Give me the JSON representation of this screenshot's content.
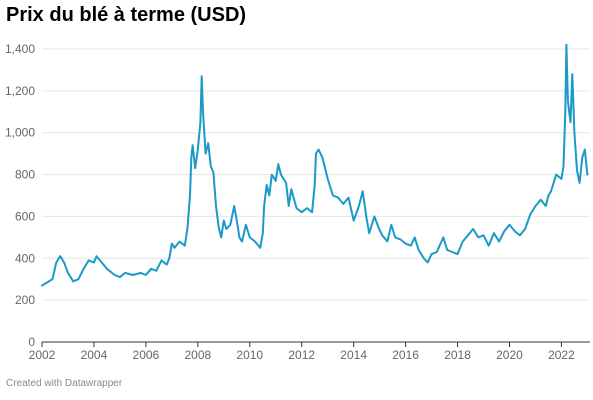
{
  "title": "Prix du blé à terme (USD)",
  "credit": "Created with Datawrapper",
  "colors": {
    "line": "#1a9ac7",
    "grid": "#e6e6e6",
    "axis": "#333333",
    "tick_text": "#666666"
  },
  "chart_data": {
    "type": "line",
    "title": "Prix du blé à terme (USD)",
    "xlabel": "",
    "ylabel": "",
    "xlim": [
      2002,
      2023.1
    ],
    "ylim": [
      0,
      1400
    ],
    "grid": true,
    "x_ticks": [
      2002,
      2004,
      2006,
      2008,
      2010,
      2012,
      2014,
      2016,
      2018,
      2020,
      2022
    ],
    "x_tick_labels": [
      "2002",
      "2004",
      "2006",
      "2008",
      "2010",
      "2012",
      "2014",
      "2016",
      "2018",
      "2020",
      "2022"
    ],
    "y_ticks": [
      0,
      200,
      400,
      600,
      800,
      1000,
      1200,
      1400
    ],
    "y_tick_labels": [
      "0",
      "200",
      "400",
      "600",
      "800",
      "1,000",
      "1,200",
      "1,400"
    ],
    "series": [
      {
        "color": "#1a9ac7",
        "points": [
          [
            2002.0,
            270
          ],
          [
            2002.2,
            285
          ],
          [
            2002.4,
            300
          ],
          [
            2002.55,
            380
          ],
          [
            2002.7,
            410
          ],
          [
            2002.85,
            380
          ],
          [
            2003.0,
            330
          ],
          [
            2003.2,
            290
          ],
          [
            2003.4,
            300
          ],
          [
            2003.6,
            350
          ],
          [
            2003.8,
            390
          ],
          [
            2004.0,
            380
          ],
          [
            2004.1,
            410
          ],
          [
            2004.3,
            380
          ],
          [
            2004.5,
            350
          ],
          [
            2004.8,
            320
          ],
          [
            2005.0,
            310
          ],
          [
            2005.2,
            330
          ],
          [
            2005.5,
            320
          ],
          [
            2005.8,
            330
          ],
          [
            2006.0,
            320
          ],
          [
            2006.2,
            350
          ],
          [
            2006.4,
            340
          ],
          [
            2006.6,
            390
          ],
          [
            2006.8,
            370
          ],
          [
            2006.9,
            400
          ],
          [
            2007.0,
            470
          ],
          [
            2007.1,
            450
          ],
          [
            2007.3,
            480
          ],
          [
            2007.5,
            460
          ],
          [
            2007.6,
            540
          ],
          [
            2007.7,
            700
          ],
          [
            2007.75,
            880
          ],
          [
            2007.8,
            940
          ],
          [
            2007.9,
            830
          ],
          [
            2008.0,
            920
          ],
          [
            2008.1,
            1050
          ],
          [
            2008.15,
            1270
          ],
          [
            2008.2,
            1100
          ],
          [
            2008.3,
            900
          ],
          [
            2008.4,
            950
          ],
          [
            2008.5,
            840
          ],
          [
            2008.6,
            810
          ],
          [
            2008.7,
            650
          ],
          [
            2008.8,
            550
          ],
          [
            2008.9,
            500
          ],
          [
            2009.0,
            580
          ],
          [
            2009.1,
            540
          ],
          [
            2009.25,
            560
          ],
          [
            2009.4,
            650
          ],
          [
            2009.5,
            580
          ],
          [
            2009.6,
            500
          ],
          [
            2009.7,
            480
          ],
          [
            2009.85,
            560
          ],
          [
            2010.0,
            500
          ],
          [
            2010.2,
            480
          ],
          [
            2010.4,
            450
          ],
          [
            2010.5,
            520
          ],
          [
            2010.55,
            650
          ],
          [
            2010.65,
            750
          ],
          [
            2010.75,
            700
          ],
          [
            2010.85,
            800
          ],
          [
            2011.0,
            770
          ],
          [
            2011.1,
            850
          ],
          [
            2011.2,
            800
          ],
          [
            2011.4,
            760
          ],
          [
            2011.5,
            650
          ],
          [
            2011.6,
            730
          ],
          [
            2011.8,
            640
          ],
          [
            2012.0,
            620
          ],
          [
            2012.2,
            640
          ],
          [
            2012.4,
            620
          ],
          [
            2012.5,
            750
          ],
          [
            2012.55,
            900
          ],
          [
            2012.65,
            920
          ],
          [
            2012.8,
            880
          ],
          [
            2013.0,
            780
          ],
          [
            2013.2,
            700
          ],
          [
            2013.4,
            690
          ],
          [
            2013.6,
            660
          ],
          [
            2013.8,
            690
          ],
          [
            2014.0,
            580
          ],
          [
            2014.2,
            650
          ],
          [
            2014.35,
            720
          ],
          [
            2014.5,
            590
          ],
          [
            2014.6,
            520
          ],
          [
            2014.8,
            600
          ],
          [
            2014.95,
            550
          ],
          [
            2015.1,
            510
          ],
          [
            2015.3,
            480
          ],
          [
            2015.45,
            560
          ],
          [
            2015.6,
            500
          ],
          [
            2015.8,
            490
          ],
          [
            2016.0,
            470
          ],
          [
            2016.2,
            460
          ],
          [
            2016.35,
            500
          ],
          [
            2016.5,
            440
          ],
          [
            2016.7,
            400
          ],
          [
            2016.85,
            380
          ],
          [
            2017.0,
            420
          ],
          [
            2017.2,
            430
          ],
          [
            2017.45,
            500
          ],
          [
            2017.6,
            440
          ],
          [
            2017.8,
            430
          ],
          [
            2018.0,
            420
          ],
          [
            2018.2,
            480
          ],
          [
            2018.4,
            510
          ],
          [
            2018.6,
            540
          ],
          [
            2018.8,
            500
          ],
          [
            2019.0,
            510
          ],
          [
            2019.2,
            460
          ],
          [
            2019.4,
            520
          ],
          [
            2019.6,
            480
          ],
          [
            2019.8,
            530
          ],
          [
            2020.0,
            560
          ],
          [
            2020.2,
            530
          ],
          [
            2020.4,
            510
          ],
          [
            2020.6,
            540
          ],
          [
            2020.8,
            610
          ],
          [
            2021.0,
            650
          ],
          [
            2021.2,
            680
          ],
          [
            2021.4,
            650
          ],
          [
            2021.5,
            700
          ],
          [
            2021.6,
            720
          ],
          [
            2021.8,
            800
          ],
          [
            2022.0,
            780
          ],
          [
            2022.08,
            840
          ],
          [
            2022.15,
            1100
          ],
          [
            2022.19,
            1420
          ],
          [
            2022.25,
            1150
          ],
          [
            2022.35,
            1050
          ],
          [
            2022.42,
            1280
          ],
          [
            2022.5,
            1000
          ],
          [
            2022.6,
            820
          ],
          [
            2022.7,
            760
          ],
          [
            2022.8,
            880
          ],
          [
            2022.9,
            920
          ],
          [
            2023.0,
            800
          ]
        ]
      }
    ]
  }
}
